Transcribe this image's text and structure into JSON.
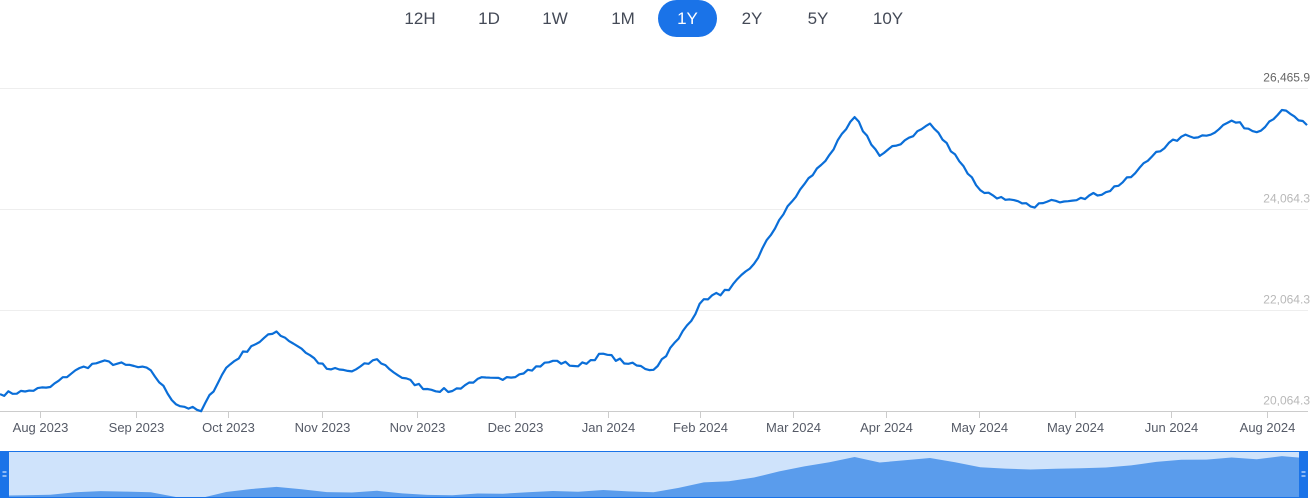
{
  "range_selector": {
    "buttons": [
      "12H",
      "1D",
      "1W",
      "1M",
      "1Y",
      "2Y",
      "5Y",
      "10Y"
    ],
    "active": "1Y"
  },
  "colors": {
    "line": "#0a6ed8",
    "active_button": "#1a73e8",
    "navigator_fill": "#5a9cec",
    "navigator_bg": "#cfe3fb",
    "handle": "#1a73e8"
  },
  "chart_data": {
    "type": "line",
    "x_tick_labels": [
      "Aug 2023",
      "Sep 2023",
      "Oct 2023",
      "Nov 2023",
      "Nov 2023",
      "Dec 2023",
      "Jan 2024",
      "Feb 2024",
      "Mar 2024",
      "Apr 2024",
      "May 2024",
      "May 2024",
      "Jun 2024",
      "Aug 2024"
    ],
    "y_tick_labels": [
      "26,465.9",
      "24,064.3",
      "22,064.3",
      "20,064.3"
    ],
    "y_ticks": [
      26465.9,
      24064.3,
      22064.3,
      20064.3
    ],
    "ylim": [
      20064.3,
      26465.9
    ],
    "grid": true,
    "series": [
      {
        "x": [
          0,
          7,
          14,
          21,
          28,
          35,
          42,
          49,
          56,
          63,
          70,
          77,
          84,
          91,
          98,
          105,
          112,
          119,
          126,
          133,
          140,
          147,
          154,
          161,
          168,
          175,
          182,
          189,
          196,
          203,
          210,
          217,
          224,
          231,
          238,
          245,
          252,
          259,
          266,
          273,
          280,
          287,
          294,
          301,
          308,
          315,
          322,
          329,
          336,
          343,
          350,
          357,
          364
        ],
        "values": [
          20400,
          20450,
          20540,
          20870,
          21040,
          20980,
          20870,
          20200,
          20060,
          20920,
          21350,
          21640,
          21300,
          20900,
          20850,
          21090,
          20720,
          20500,
          20460,
          20700,
          20680,
          20880,
          21060,
          20950,
          21200,
          21000,
          20880,
          21500,
          22280,
          22460,
          22980,
          23850,
          24560,
          25140,
          25890,
          25120,
          25430,
          25760,
          25150,
          24440,
          24250,
          24120,
          24230,
          24290,
          24400,
          24700,
          25200,
          25500,
          25520,
          25820,
          25590,
          26030,
          25730
        ]
      }
    ]
  }
}
